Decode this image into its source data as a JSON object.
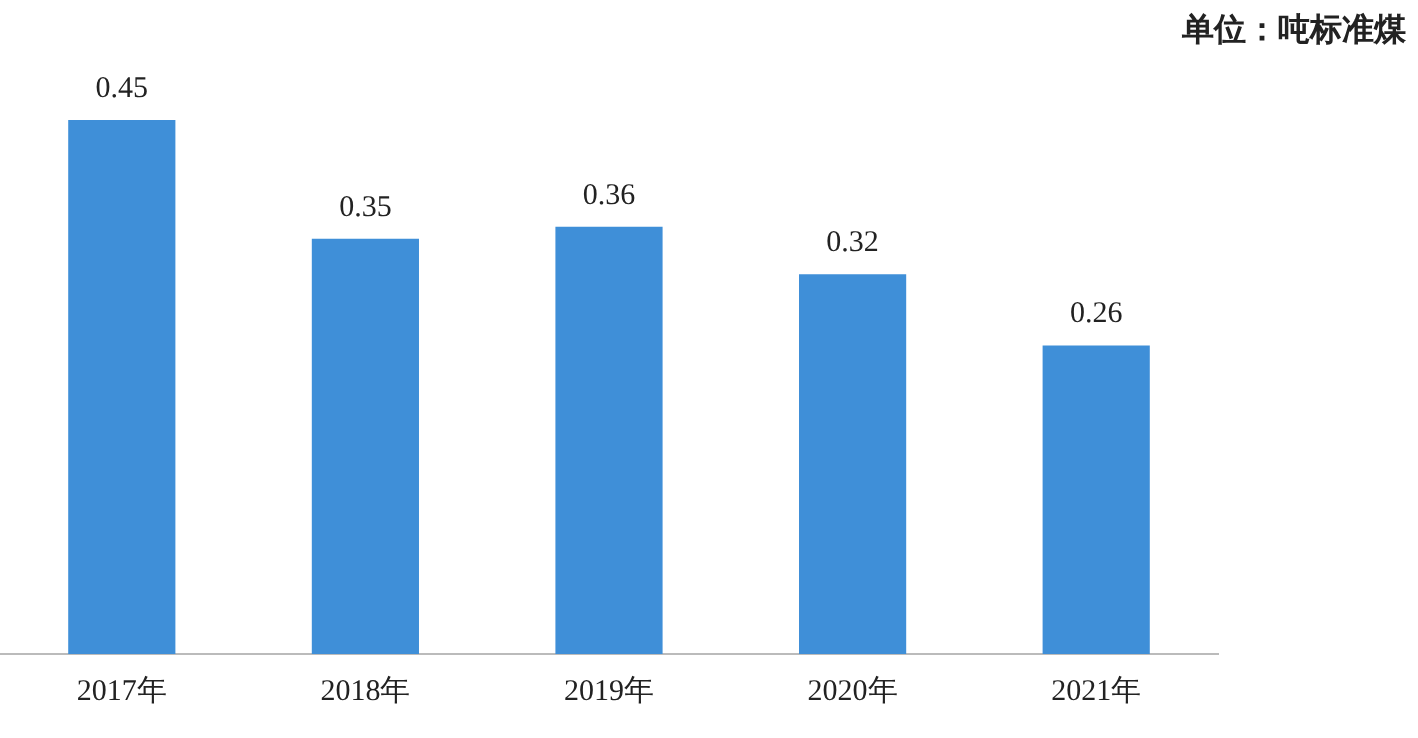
{
  "chart_data": {
    "type": "bar",
    "categories": [
      "2017年",
      "2018年",
      "2019年",
      "2020年",
      "2021年"
    ],
    "values": [
      0.45,
      0.35,
      0.36,
      0.32,
      0.26
    ],
    "color": "#3f8fd8",
    "data_labels": true,
    "grid": false,
    "legend": false,
    "tick_labels": "x",
    "annotations": [
      "单位：吨标准煤"
    ]
  }
}
